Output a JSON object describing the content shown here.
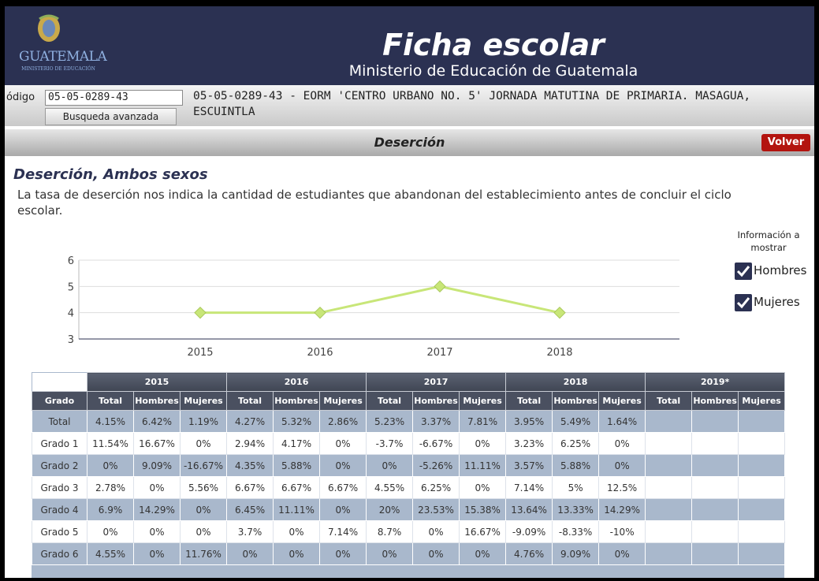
{
  "header": {
    "logo_text": "GUATEMALA",
    "logo_sub": "MINISTERIO DE EDUCACIÓN",
    "title": "Ficha escolar",
    "subtitle": "Ministerio de Educación de Guatemala"
  },
  "search": {
    "label": "ódigo",
    "code": "05-05-0289-43",
    "button": "Busqueda avanzada",
    "school": "05-05-0289-43 - EORM 'CENTRO URBANO NO. 5' JORNADA MATUTINA DE PRIMARIA. MASAGUA, ESCUINTLA"
  },
  "section": {
    "title": "Deserción",
    "back": "Volver"
  },
  "content": {
    "heading": "Deserción, Ambos sexos",
    "description": "La tasa de deserción nos indica la cantidad de estudiantes que abandonan del establecimiento antes de concluir el ciclo escolar."
  },
  "legend": {
    "title": "Información a mostrar",
    "options": [
      "Hombres",
      "Mujeres"
    ]
  },
  "chart_data": {
    "type": "line",
    "categories": [
      "2015",
      "2016",
      "2017",
      "2018"
    ],
    "values": [
      4,
      4,
      5,
      4
    ],
    "color": "#c8e678",
    "ylim": [
      3,
      6
    ],
    "yticks": [
      3,
      4,
      5,
      6
    ],
    "grid": true
  },
  "table": {
    "corner": "Grado",
    "years": [
      "2015",
      "2016",
      "2017",
      "2018",
      "2019*"
    ],
    "subheaders": [
      "Total",
      "Hombres",
      "Mujeres"
    ],
    "rows": [
      [
        "Total",
        "4.15%",
        "6.42%",
        "1.19%",
        "4.27%",
        "5.32%",
        "2.86%",
        "5.23%",
        "3.37%",
        "7.81%",
        "3.95%",
        "5.49%",
        "1.64%"
      ],
      [
        "Grado 1",
        "11.54%",
        "16.67%",
        "0%",
        "2.94%",
        "4.17%",
        "0%",
        "-3.7%",
        "-6.67%",
        "0%",
        "3.23%",
        "6.25%",
        "0%"
      ],
      [
        "Grado 2",
        "0%",
        "9.09%",
        "-16.67%",
        "4.35%",
        "5.88%",
        "0%",
        "0%",
        "-5.26%",
        "11.11%",
        "3.57%",
        "5.88%",
        "0%"
      ],
      [
        "Grado 3",
        "2.78%",
        "0%",
        "5.56%",
        "6.67%",
        "6.67%",
        "6.67%",
        "4.55%",
        "6.25%",
        "0%",
        "7.14%",
        "5%",
        "12.5%"
      ],
      [
        "Grado 4",
        "6.9%",
        "14.29%",
        "0%",
        "6.45%",
        "11.11%",
        "0%",
        "20%",
        "23.53%",
        "15.38%",
        "13.64%",
        "13.33%",
        "14.29%"
      ],
      [
        "Grado 5",
        "0%",
        "0%",
        "0%",
        "3.7%",
        "0%",
        "7.14%",
        "8.7%",
        "0%",
        "16.67%",
        "-9.09%",
        "-8.33%",
        "-10%"
      ],
      [
        "Grado 6",
        "4.55%",
        "0%",
        "11.76%",
        "0%",
        "0%",
        "0%",
        "0%",
        "0%",
        "0%",
        "4.76%",
        "9.09%",
        "0%"
      ]
    ]
  }
}
